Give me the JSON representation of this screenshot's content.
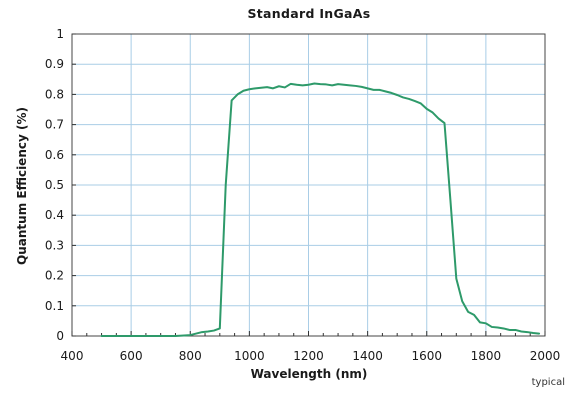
{
  "chart_data": {
    "type": "line",
    "title": "Standard InGaAs",
    "xlabel": "Wavelength (nm)",
    "ylabel": "Quantum Efficiency (%)",
    "note": "typical",
    "xlim": [
      400,
      2000
    ],
    "ylim": [
      0,
      1
    ],
    "x_ticks": [
      "400",
      "600",
      "800",
      "1000",
      "1200",
      "1400",
      "1600",
      "1800",
      "2000"
    ],
    "y_ticks": [
      "0",
      "0.1",
      "0.2",
      "0.3",
      "0.4",
      "0.5",
      "0.6",
      "0.7",
      "0.8",
      "0.9",
      "1"
    ],
    "grid": true,
    "legend": "none",
    "series_color": "#2e9a6a",
    "series": [
      {
        "x": [
          500,
          550,
          600,
          650,
          700,
          750,
          800,
          820,
          840,
          860,
          880,
          900,
          920,
          940,
          960,
          980,
          1000,
          1020,
          1040,
          1060,
          1080,
          1100,
          1120,
          1140,
          1160,
          1180,
          1200,
          1220,
          1240,
          1260,
          1280,
          1300,
          1320,
          1340,
          1360,
          1380,
          1400,
          1420,
          1440,
          1460,
          1480,
          1500,
          1520,
          1540,
          1560,
          1580,
          1600,
          1620,
          1640,
          1660,
          1680,
          1700,
          1720,
          1740,
          1760,
          1780,
          1800,
          1820,
          1840,
          1860,
          1880,
          1900,
          1920,
          1940,
          1960,
          1980
        ],
        "y": [
          0.0,
          0.0,
          0.0,
          0.0,
          0.0,
          0.0,
          0.003,
          0.008,
          0.013,
          0.015,
          0.018,
          0.025,
          0.5,
          0.78,
          0.8,
          0.812,
          0.817,
          0.82,
          0.822,
          0.824,
          0.82,
          0.827,
          0.823,
          0.835,
          0.832,
          0.83,
          0.832,
          0.836,
          0.834,
          0.833,
          0.83,
          0.834,
          0.832,
          0.83,
          0.828,
          0.825,
          0.82,
          0.815,
          0.815,
          0.81,
          0.805,
          0.798,
          0.79,
          0.785,
          0.778,
          0.77,
          0.752,
          0.74,
          0.72,
          0.705,
          0.45,
          0.19,
          0.115,
          0.08,
          0.07,
          0.045,
          0.042,
          0.03,
          0.028,
          0.025,
          0.02,
          0.02,
          0.015,
          0.013,
          0.01,
          0.008
        ]
      }
    ]
  }
}
